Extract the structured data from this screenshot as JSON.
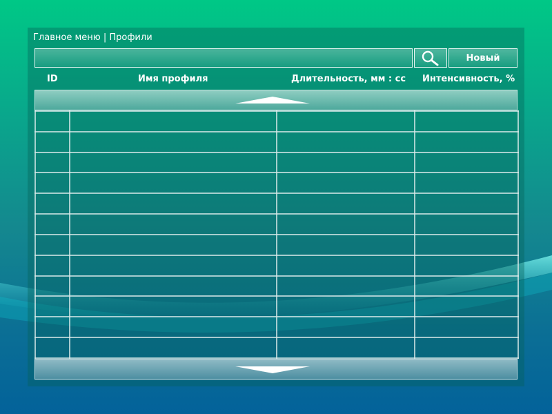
{
  "breadcrumb": {
    "text": "Главное меню | Профили"
  },
  "search": {
    "value": "",
    "placeholder": "",
    "icon": "search-icon"
  },
  "toolbar": {
    "new_label": "Новый"
  },
  "table": {
    "columns": [
      {
        "key": "id",
        "label": "ID"
      },
      {
        "key": "name",
        "label": "Имя профиля"
      },
      {
        "key": "duration",
        "label": "Длительность, мм : сс"
      },
      {
        "key": "intensity",
        "label": "Интенсивность, %"
      }
    ],
    "rows": [
      [
        "",
        "",
        "",
        ""
      ],
      [
        "",
        "",
        "",
        ""
      ],
      [
        "",
        "",
        "",
        ""
      ],
      [
        "",
        "",
        "",
        ""
      ],
      [
        "",
        "",
        "",
        ""
      ],
      [
        "",
        "",
        "",
        ""
      ],
      [
        "",
        "",
        "",
        ""
      ],
      [
        "",
        "",
        "",
        ""
      ],
      [
        "",
        "",
        "",
        ""
      ],
      [
        "",
        "",
        "",
        ""
      ],
      [
        "",
        "",
        "",
        ""
      ],
      [
        "",
        "",
        "",
        ""
      ]
    ]
  },
  "scroll": {
    "up_icon": "chevron-up-icon",
    "down_icon": "chevron-down-icon"
  }
}
